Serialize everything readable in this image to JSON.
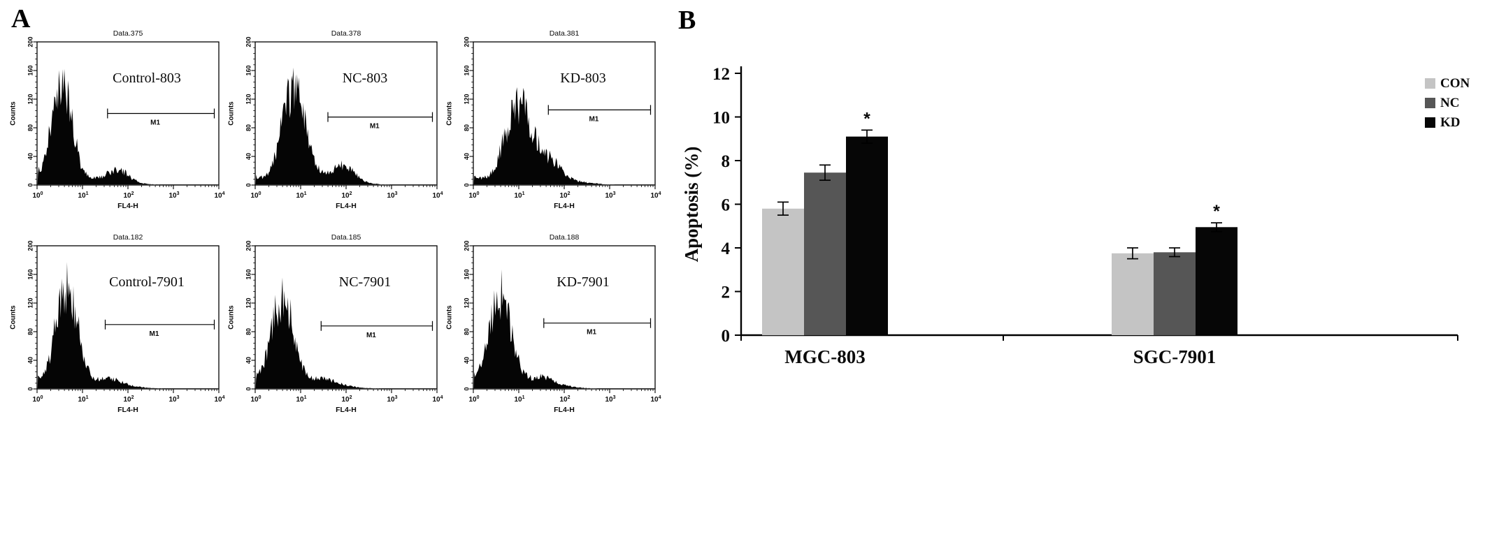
{
  "figure": {
    "panelA": {
      "label": "A"
    },
    "panelB": {
      "label": "B"
    }
  },
  "chart_data": [
    {
      "id": "flow-cytometry-histograms",
      "type": "histogram",
      "panel": "A",
      "layout": "2x3",
      "xlabel": "FL4-H",
      "ylabel": "Counts",
      "xscale": "log",
      "xlim_log10": [
        0,
        4
      ],
      "ylim": [
        0,
        200
      ],
      "yticks": [
        0,
        40,
        80,
        120,
        160,
        200
      ],
      "xtick_exponents": [
        0,
        1,
        2,
        3,
        4
      ],
      "gate_label": "M1",
      "plots": [
        {
          "title": "Data.375",
          "sample": "Control-803",
          "peak_log10": 0.55,
          "peak_counts": 142,
          "peak_sigma": 0.22,
          "bump_log10": 1.8,
          "bump_counts": 15,
          "gate_counts": 100,
          "gate_start_log10": 1.55
        },
        {
          "title": "Data.378",
          "sample": "NC-803",
          "peak_log10": 0.85,
          "peak_counts": 135,
          "peak_sigma": 0.26,
          "bump_log10": 1.95,
          "bump_counts": 20,
          "gate_counts": 95,
          "gate_start_log10": 1.6
        },
        {
          "title": "Data.381",
          "sample": "KD-803",
          "peak_log10": 1.0,
          "peak_counts": 112,
          "peak_sigma": 0.3,
          "bump_log10": 1.7,
          "bump_counts": 22,
          "gate_counts": 105,
          "gate_start_log10": 1.65
        },
        {
          "title": "Data.182",
          "sample": "Control-7901",
          "peak_log10": 0.65,
          "peak_counts": 140,
          "peak_sigma": 0.24,
          "bump_log10": 1.6,
          "bump_counts": 6,
          "gate_counts": 90,
          "gate_start_log10": 1.5
        },
        {
          "title": "Data.185",
          "sample": "NC-7901",
          "peak_log10": 0.6,
          "peak_counts": 125,
          "peak_sigma": 0.24,
          "bump_log10": 1.5,
          "bump_counts": 6,
          "gate_counts": 88,
          "gate_start_log10": 1.45
        },
        {
          "title": "Data.188",
          "sample": "KD-7901",
          "peak_log10": 0.6,
          "peak_counts": 128,
          "peak_sigma": 0.24,
          "bump_log10": 1.5,
          "bump_counts": 8,
          "gate_counts": 92,
          "gate_start_log10": 1.55
        }
      ]
    },
    {
      "id": "apoptosis-bar-chart",
      "type": "bar",
      "panel": "B",
      "title": "",
      "xlabel": "",
      "ylabel": "Apoptosis (%)",
      "ylim": [
        0,
        12
      ],
      "yticks": [
        0,
        2,
        4,
        6,
        8,
        10,
        12
      ],
      "categories": [
        "MGC-803",
        "SGC-7901"
      ],
      "series": [
        {
          "name": "CON",
          "color": "#c4c4c4",
          "values": [
            5.8,
            3.75
          ],
          "errors": [
            0.3,
            0.25
          ]
        },
        {
          "name": "NC",
          "color": "#565656",
          "values": [
            7.45,
            3.8
          ],
          "errors": [
            0.35,
            0.2
          ]
        },
        {
          "name": "KD",
          "color": "#060606",
          "values": [
            9.1,
            4.95
          ],
          "errors": [
            0.3,
            0.2
          ],
          "significance": [
            "*",
            "*"
          ]
        }
      ],
      "legend_position": "top-right",
      "grid": false
    }
  ]
}
